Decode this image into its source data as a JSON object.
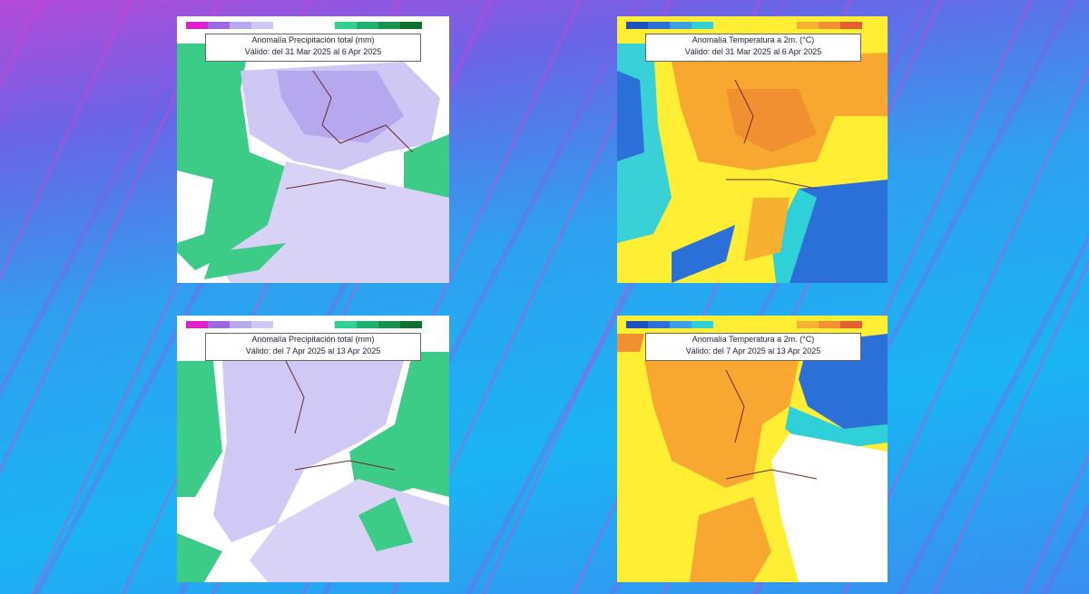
{
  "maps": [
    {
      "title": "Anomalía Precipitación total (mm)",
      "validity": "Válido: del 31 Mar 2025 al 6 Apr 2025"
    },
    {
      "title": "Anomalía Temperatura a 2m. (°C)",
      "validity": "Válido: del 31 Mar 2025 al 6 Apr 2025"
    },
    {
      "title": "Anomalía Precipitación total (mm)",
      "validity": "Válido: del 7 Apr 2025 al 13 Apr 2025"
    },
    {
      "title": "Anomalía Temperatura a 2m. (°C)",
      "validity": "Válido: del 7 Apr 2025 al 13 Apr 2025"
    }
  ]
}
